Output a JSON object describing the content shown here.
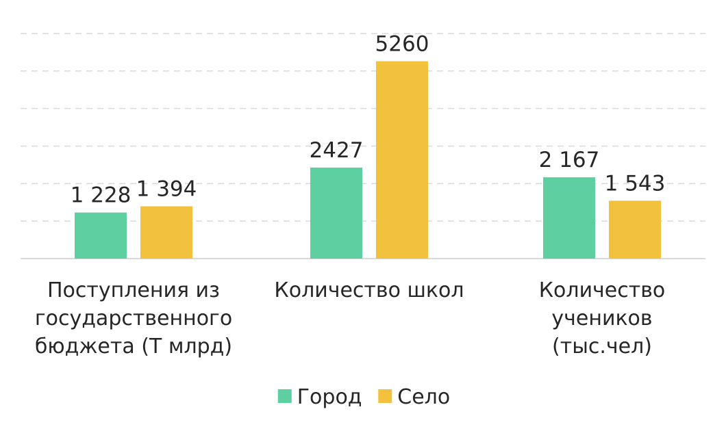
{
  "chart_data": {
    "type": "bar",
    "categories": [
      [
        "Поступления из",
        "государственного",
        "бюджета (Т млрд)"
      ],
      [
        "Количество школ"
      ],
      [
        "Количество",
        "учеников",
        "(тыс.чел)"
      ]
    ],
    "series": [
      {
        "name": "Город",
        "color": "#5dcfa0",
        "values": [
          1228,
          2427,
          2167
        ],
        "labels": [
          "1 228",
          "2427",
          "2 167"
        ]
      },
      {
        "name": "Село",
        "color": "#f2c13d",
        "values": [
          1394,
          5260,
          1543
        ],
        "labels": [
          "1 394",
          "5260",
          "1 543"
        ]
      }
    ],
    "ylim": [
      0,
      6000
    ],
    "grid": true,
    "legend": "bottom-center",
    "title": "",
    "xlabel": "",
    "ylabel": ""
  }
}
